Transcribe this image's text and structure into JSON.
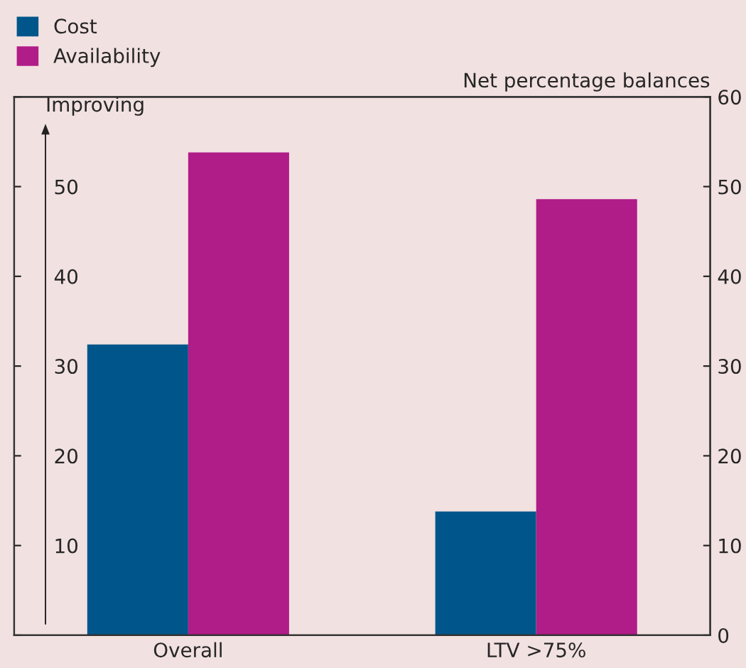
{
  "chart_data": {
    "type": "bar",
    "y2label": "Net percentage balances",
    "annotations": [
      "Improving"
    ],
    "categories": [
      "Overall",
      "LTV >75%"
    ],
    "series": [
      {
        "name": "Cost",
        "color": "#00568a",
        "values": [
          32.4,
          13.8
        ]
      },
      {
        "name": "Availability",
        "color": "#b01c88",
        "values": [
          53.8,
          48.6
        ]
      }
    ],
    "ylim": [
      0,
      60
    ],
    "yticks": [
      {
        "value": 0,
        "label": null
      },
      10,
      20,
      30,
      40,
      50,
      {
        "value": 60,
        "label": null
      }
    ],
    "y2lim": [
      0,
      60
    ],
    "y2ticks": [
      0,
      10,
      20,
      30,
      40,
      50,
      60
    ],
    "grid": false,
    "legend": "top left"
  }
}
